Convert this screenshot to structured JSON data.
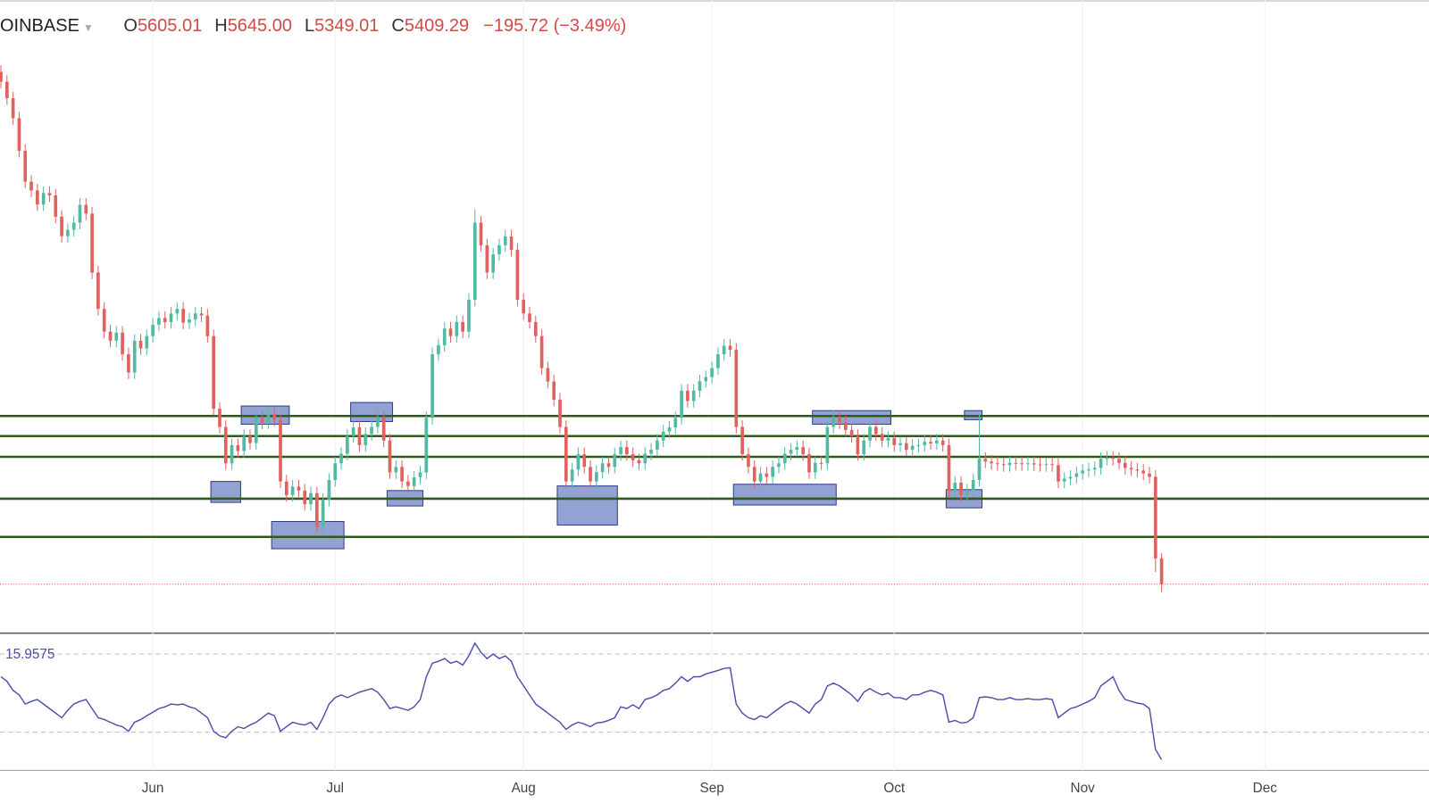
{
  "chart_data": {
    "type": "candlestick",
    "symbol": "OINBASE",
    "header": [
      {
        "key": "O",
        "text": "5605.01"
      },
      {
        "key": "H",
        "text": "5645.00"
      },
      {
        "key": "L",
        "text": "5349.01"
      },
      {
        "key": "C",
        "text": "5409.29"
      }
    ],
    "change": "−195.72 (−3.49%)",
    "up_color": "#53b9a3",
    "down_color": "#e0625e",
    "ylim": [
      5037,
      9846
    ],
    "xlim": [
      -0.15,
      235
    ],
    "xticks": [
      {
        "value": 25,
        "label": "Jun"
      },
      {
        "value": 55,
        "label": "Jul"
      },
      {
        "value": 86,
        "label": "Aug"
      },
      {
        "value": 117,
        "label": "Sep"
      },
      {
        "value": 147,
        "label": "Oct"
      },
      {
        "value": 178,
        "label": "Nov"
      },
      {
        "value": 208,
        "label": "Dec"
      }
    ],
    "grid": true,
    "levels": [
      6686,
      6534,
      6376,
      6058,
      5768
    ],
    "level_color": "#2e5a1c",
    "box_color": "#6f82c4",
    "boxes": [
      {
        "from": 40,
        "to": 47,
        "top": 6762,
        "bottom": 6624
      },
      {
        "from": 35,
        "to": 39,
        "top": 6189,
        "bottom": 6030
      },
      {
        "from": 45,
        "to": 56,
        "top": 5885,
        "bottom": 5678
      },
      {
        "from": 58,
        "to": 64,
        "top": 6789,
        "bottom": 6644
      },
      {
        "from": 64,
        "to": 69,
        "top": 6120,
        "bottom": 6003
      },
      {
        "from": 92,
        "to": 101,
        "top": 6155,
        "bottom": 5858
      },
      {
        "from": 121,
        "to": 137,
        "top": 6168,
        "bottom": 6010
      },
      {
        "from": 134,
        "to": 146,
        "top": 6727,
        "bottom": 6624
      },
      {
        "from": 159,
        "to": 161,
        "top": 6727,
        "bottom": 6658
      },
      {
        "from": 156,
        "to": 161,
        "top": 6127,
        "bottom": 5989
      }
    ],
    "ohlc": [
      [
        9300,
        9350,
        9175,
        9225
      ],
      [
        9225,
        9275,
        9050,
        9100
      ],
      [
        9100,
        9150,
        8898,
        8948
      ],
      [
        8948,
        8998,
        8650,
        8700
      ],
      [
        8700,
        8750,
        8416,
        8466
      ],
      [
        8466,
        8516,
        8350,
        8400
      ],
      [
        8400,
        8450,
        8243,
        8293
      ],
      [
        8293,
        8430,
        8243,
        8380
      ],
      [
        8380,
        8430,
        8312,
        8362
      ],
      [
        8362,
        8412,
        8150,
        8200
      ],
      [
        8200,
        8250,
        8002,
        8052
      ],
      [
        8052,
        8150,
        8002,
        8100
      ],
      [
        8100,
        8205,
        8050,
        8155
      ],
      [
        8155,
        8340,
        8105,
        8290
      ],
      [
        8290,
        8340,
        8174,
        8224
      ],
      [
        8224,
        8274,
        7726,
        7776
      ],
      [
        7776,
        7826,
        7450,
        7500
      ],
      [
        7500,
        7550,
        7277,
        7327
      ],
      [
        7327,
        7377,
        7208,
        7258
      ],
      [
        7258,
        7370,
        7208,
        7320
      ],
      [
        7320,
        7370,
        7105,
        7155
      ],
      [
        7155,
        7205,
        6967,
        7017
      ],
      [
        7017,
        7308,
        6967,
        7258
      ],
      [
        7258,
        7308,
        7150,
        7200
      ],
      [
        7200,
        7343,
        7150,
        7293
      ],
      [
        7293,
        7430,
        7243,
        7380
      ],
      [
        7380,
        7481,
        7330,
        7431
      ],
      [
        7431,
        7481,
        7350,
        7400
      ],
      [
        7400,
        7515,
        7350,
        7465
      ],
      [
        7465,
        7550,
        7415,
        7500
      ],
      [
        7500,
        7550,
        7346,
        7396
      ],
      [
        7396,
        7470,
        7346,
        7420
      ],
      [
        7420,
        7515,
        7370,
        7465
      ],
      [
        7465,
        7515,
        7400,
        7450
      ],
      [
        7450,
        7500,
        7243,
        7293
      ],
      [
        7293,
        7343,
        6691,
        6741
      ],
      [
        6741,
        6791,
        6553,
        6603
      ],
      [
        6603,
        6653,
        6277,
        6327
      ],
      [
        6327,
        6515,
        6277,
        6465
      ],
      [
        6465,
        6515,
        6370,
        6420
      ],
      [
        6420,
        6584,
        6370,
        6534
      ],
      [
        6534,
        6584,
        6430,
        6480
      ],
      [
        6480,
        6722,
        6430,
        6672
      ],
      [
        6672,
        6722,
        6587,
        6637
      ],
      [
        6637,
        6750,
        6587,
        6700
      ],
      [
        6700,
        6750,
        6608,
        6658
      ],
      [
        6658,
        6708,
        6139,
        6189
      ],
      [
        6189,
        6239,
        6035,
        6085
      ],
      [
        6085,
        6200,
        6035,
        6150
      ],
      [
        6150,
        6200,
        6070,
        6120
      ],
      [
        6120,
        6170,
        5966,
        6016
      ],
      [
        6016,
        6150,
        5966,
        6100
      ],
      [
        6100,
        6150,
        5794,
        5844
      ],
      [
        5844,
        6101,
        5794,
        6051
      ],
      [
        6051,
        6250,
        6001,
        6200
      ],
      [
        6200,
        6377,
        6150,
        6327
      ],
      [
        6327,
        6450,
        6277,
        6400
      ],
      [
        6400,
        6584,
        6350,
        6534
      ],
      [
        6534,
        6650,
        6484,
        6600
      ],
      [
        6600,
        6650,
        6415,
        6465
      ],
      [
        6465,
        6600,
        6415,
        6550
      ],
      [
        6550,
        6653,
        6500,
        6603
      ],
      [
        6603,
        6722,
        6553,
        6672
      ],
      [
        6672,
        6722,
        6450,
        6500
      ],
      [
        6500,
        6550,
        6208,
        6258
      ],
      [
        6258,
        6350,
        6208,
        6300
      ],
      [
        6300,
        6350,
        6139,
        6189
      ],
      [
        6189,
        6239,
        6104,
        6154
      ],
      [
        6154,
        6270,
        6104,
        6220
      ],
      [
        6220,
        6308,
        6170,
        6258
      ],
      [
        6258,
        6722,
        6208,
        6672
      ],
      [
        6672,
        7205,
        6622,
        7155
      ],
      [
        7155,
        7274,
        7105,
        7224
      ],
      [
        7224,
        7400,
        7174,
        7350
      ],
      [
        7350,
        7400,
        7243,
        7293
      ],
      [
        7293,
        7450,
        7243,
        7400
      ],
      [
        7400,
        7450,
        7277,
        7327
      ],
      [
        7327,
        7619,
        7277,
        7569
      ],
      [
        7569,
        8255,
        7519,
        8155
      ],
      [
        8155,
        8205,
        7933,
        7983
      ],
      [
        7983,
        8033,
        7726,
        7776
      ],
      [
        7776,
        7964,
        7726,
        7914
      ],
      [
        7914,
        8033,
        7864,
        7983
      ],
      [
        7983,
        8100,
        7933,
        8050
      ],
      [
        8050,
        8100,
        7898,
        7948
      ],
      [
        7948,
        7998,
        7519,
        7569
      ],
      [
        7569,
        7619,
        7415,
        7465
      ],
      [
        7465,
        7515,
        7350,
        7400
      ],
      [
        7400,
        7450,
        7243,
        7293
      ],
      [
        7293,
        7343,
        7000,
        7050
      ],
      [
        7050,
        7100,
        6898,
        6948
      ],
      [
        6948,
        6998,
        6760,
        6810
      ],
      [
        6810,
        6860,
        6553,
        6603
      ],
      [
        6603,
        6653,
        6139,
        6189
      ],
      [
        6189,
        6330,
        6139,
        6280
      ],
      [
        6280,
        6446,
        6230,
        6396
      ],
      [
        6396,
        6446,
        6250,
        6300
      ],
      [
        6300,
        6350,
        6139,
        6189
      ],
      [
        6189,
        6310,
        6139,
        6260
      ],
      [
        6260,
        6377,
        6210,
        6327
      ],
      [
        6327,
        6377,
        6250,
        6300
      ],
      [
        6300,
        6446,
        6250,
        6396
      ],
      [
        6396,
        6500,
        6346,
        6450
      ],
      [
        6450,
        6500,
        6346,
        6396
      ],
      [
        6396,
        6446,
        6300,
        6350
      ],
      [
        6350,
        6400,
        6277,
        6327
      ],
      [
        6327,
        6450,
        6277,
        6400
      ],
      [
        6400,
        6480,
        6350,
        6430
      ],
      [
        6430,
        6550,
        6380,
        6500
      ],
      [
        6500,
        6618,
        6450,
        6568
      ],
      [
        6568,
        6650,
        6518,
        6600
      ],
      [
        6600,
        6722,
        6550,
        6672
      ],
      [
        6672,
        6929,
        6622,
        6879
      ],
      [
        6879,
        6929,
        6750,
        6800
      ],
      [
        6800,
        6929,
        6750,
        6879
      ],
      [
        6879,
        7000,
        6829,
        6950
      ],
      [
        6950,
        7032,
        6900,
        6982
      ],
      [
        6982,
        7100,
        6932,
        7050
      ],
      [
        7050,
        7205,
        7000,
        7155
      ],
      [
        7155,
        7270,
        7105,
        7220
      ],
      [
        7220,
        7270,
        7139,
        7189
      ],
      [
        7189,
        7239,
        6553,
        6603
      ],
      [
        6603,
        6653,
        6346,
        6396
      ],
      [
        6396,
        6446,
        6250,
        6300
      ],
      [
        6300,
        6350,
        6139,
        6189
      ],
      [
        6189,
        6300,
        6139,
        6250
      ],
      [
        6250,
        6300,
        6174,
        6224
      ],
      [
        6224,
        6350,
        6174,
        6300
      ],
      [
        6300,
        6377,
        6250,
        6327
      ],
      [
        6327,
        6450,
        6277,
        6400
      ],
      [
        6400,
        6480,
        6350,
        6430
      ],
      [
        6430,
        6500,
        6380,
        6450
      ],
      [
        6450,
        6500,
        6346,
        6396
      ],
      [
        6396,
        6446,
        6208,
        6258
      ],
      [
        6258,
        6380,
        6208,
        6330
      ],
      [
        6330,
        6380,
        6277,
        6327
      ],
      [
        6327,
        6653,
        6277,
        6603
      ],
      [
        6603,
        6730,
        6553,
        6680
      ],
      [
        6680,
        6730,
        6587,
        6637
      ],
      [
        6637,
        6687,
        6530,
        6580
      ],
      [
        6580,
        6630,
        6484,
        6534
      ],
      [
        6534,
        6584,
        6346,
        6396
      ],
      [
        6396,
        6550,
        6346,
        6500
      ],
      [
        6500,
        6653,
        6450,
        6603
      ],
      [
        6603,
        6653,
        6500,
        6550
      ],
      [
        6550,
        6600,
        6449,
        6499
      ],
      [
        6499,
        6570,
        6449,
        6520
      ],
      [
        6520,
        6570,
        6415,
        6465
      ],
      [
        6465,
        6530,
        6415,
        6480
      ],
      [
        6480,
        6530,
        6380,
        6430
      ],
      [
        6430,
        6510,
        6380,
        6460
      ],
      [
        6460,
        6515,
        6410,
        6465
      ],
      [
        6465,
        6540,
        6415,
        6490
      ],
      [
        6490,
        6540,
        6428,
        6478
      ],
      [
        6478,
        6550,
        6428,
        6500
      ],
      [
        6500,
        6550,
        6415,
        6465
      ],
      [
        6465,
        6515,
        6070,
        6120
      ],
      [
        6120,
        6230,
        6070,
        6180
      ],
      [
        6180,
        6230,
        6035,
        6085
      ],
      [
        6085,
        6170,
        6035,
        6120
      ],
      [
        6120,
        6250,
        6070,
        6200
      ],
      [
        6200,
        6700,
        6150,
        6361
      ],
      [
        6361,
        6411,
        6290,
        6340
      ],
      [
        6340,
        6390,
        6277,
        6327
      ],
      [
        6327,
        6377,
        6270,
        6320
      ],
      [
        6320,
        6370,
        6263,
        6313
      ],
      [
        6313,
        6380,
        6263,
        6330
      ],
      [
        6330,
        6380,
        6277,
        6327
      ],
      [
        6327,
        6377,
        6270,
        6320
      ],
      [
        6320,
        6377,
        6270,
        6327
      ],
      [
        6327,
        6377,
        6268,
        6318
      ],
      [
        6318,
        6368,
        6263,
        6313
      ],
      [
        6313,
        6370,
        6263,
        6320
      ],
      [
        6320,
        6370,
        6263,
        6313
      ],
      [
        6313,
        6363,
        6139,
        6189
      ],
      [
        6189,
        6260,
        6139,
        6210
      ],
      [
        6210,
        6274,
        6160,
        6224
      ],
      [
        6224,
        6300,
        6174,
        6250
      ],
      [
        6250,
        6322,
        6200,
        6272
      ],
      [
        6272,
        6330,
        6222,
        6280
      ],
      [
        6280,
        6342,
        6230,
        6292
      ],
      [
        6292,
        6411,
        6242,
        6361
      ],
      [
        6361,
        6420,
        6311,
        6370
      ],
      [
        6370,
        6420,
        6311,
        6361
      ],
      [
        6361,
        6411,
        6280,
        6330
      ],
      [
        6330,
        6380,
        6242,
        6292
      ],
      [
        6292,
        6342,
        6230,
        6280
      ],
      [
        6280,
        6330,
        6222,
        6272
      ],
      [
        6272,
        6322,
        6200,
        6250
      ],
      [
        6250,
        6300,
        6174,
        6224
      ],
      [
        6224,
        6274,
        5500,
        5605.01
      ],
      [
        5605.01,
        5645.0,
        5349.01,
        5409.29
      ]
    ],
    "indicator": {
      "color": "#4a4fa8",
      "ylim": [
        10.5,
        80.7
      ],
      "levels": [
        70,
        30
      ],
      "values": [
        58.4,
        56.0,
        51.4,
        49.1,
        44.4,
        45.8,
        46.7,
        44.4,
        42.1,
        39.8,
        37.4,
        41.2,
        44.4,
        45.8,
        46.7,
        42.1,
        37.4,
        36.5,
        35.1,
        33.7,
        32.8,
        30.5,
        35.1,
        36.5,
        38.4,
        40.2,
        42.1,
        43.0,
        44.4,
        44.0,
        44.4,
        43.0,
        42.1,
        39.8,
        37.4,
        30.5,
        28.1,
        27.2,
        30.5,
        32.8,
        31.9,
        33.7,
        35.1,
        37.4,
        39.8,
        38.4,
        30.5,
        32.8,
        35.1,
        34.2,
        33.7,
        35.1,
        31.4,
        37.4,
        44.4,
        47.7,
        49.1,
        47.7,
        49.1,
        50.5,
        51.4,
        52.3,
        50.5,
        46.7,
        42.1,
        43.0,
        42.1,
        41.2,
        43.0,
        46.7,
        58.4,
        65.3,
        66.3,
        67.7,
        65.3,
        66.3,
        64.4,
        69.1,
        75.6,
        70.9,
        67.7,
        70.0,
        67.7,
        69.1,
        66.3,
        58.4,
        53.7,
        49.1,
        44.4,
        42.1,
        39.8,
        37.4,
        35.1,
        31.4,
        33.7,
        35.1,
        34.2,
        32.8,
        34.7,
        35.1,
        36.0,
        37.4,
        43.0,
        42.1,
        44.0,
        42.1,
        46.7,
        47.7,
        49.1,
        51.4,
        52.3,
        55.1,
        58.4,
        56.0,
        58.4,
        58.4,
        59.8,
        60.7,
        61.6,
        62.6,
        63.0,
        44.4,
        39.8,
        37.4,
        36.5,
        38.4,
        37.4,
        39.8,
        42.1,
        44.4,
        45.8,
        44.4,
        42.1,
        39.8,
        44.4,
        46.7,
        53.7,
        55.1,
        53.7,
        51.4,
        49.1,
        45.8,
        50.5,
        52.3,
        50.5,
        49.1,
        50.0,
        47.7,
        47.7,
        46.7,
        49.1,
        49.1,
        50.5,
        51.4,
        50.5,
        49.1,
        35.1,
        36.0,
        34.7,
        35.1,
        37.4,
        47.7,
        48.1,
        47.7,
        46.7,
        46.7,
        47.7,
        46.7,
        46.7,
        47.2,
        46.7,
        46.7,
        47.2,
        46.7,
        37.4,
        39.8,
        42.1,
        43.0,
        44.4,
        45.8,
        47.7,
        53.7,
        56.0,
        58.4,
        51.4,
        46.7,
        45.8,
        44.9,
        44.4,
        42.1,
        21.2,
        15.9575
      ]
    }
  }
}
